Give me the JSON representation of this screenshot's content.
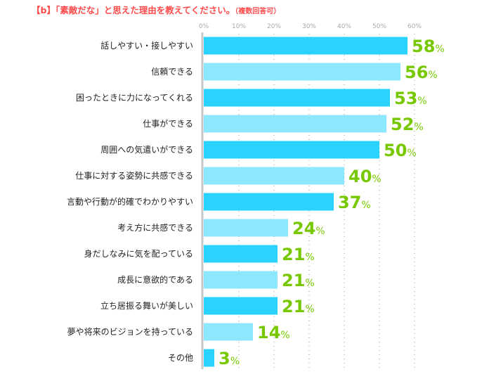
{
  "chart_data": {
    "type": "bar",
    "orientation": "horizontal",
    "title": "【b】「素敵だな」と思えた理由を教えてください。",
    "title_note": "（複数回答可）",
    "categories": [
      "話しやすい・接しやすい",
      "信頼できる",
      "困ったときに力になってくれる",
      "仕事ができる",
      "周囲への気遣いができる",
      "仕事に対する姿勢に共感できる",
      "言動や行動が的確でわかりやすい",
      "考え方に共感できる",
      "身だしなみに気を配っている",
      "成長に意欲的である",
      "立ち居振る舞いが美しい",
      "夢や将来のビジョンを持っている",
      "その他"
    ],
    "values": [
      58,
      56,
      53,
      52,
      50,
      40,
      37,
      24,
      21,
      21,
      21,
      14,
      3
    ],
    "unit": "%",
    "xlim": [
      0,
      60
    ],
    "ticks": [
      "0%",
      "10%",
      "20%",
      "30%",
      "40%",
      "50%",
      "60%"
    ],
    "grid": true,
    "colors": {
      "bar_dark": "#2ad3ff",
      "bar_light": "#8de8ff",
      "value_label": "#77c800",
      "title": "#ff4b4b"
    }
  }
}
